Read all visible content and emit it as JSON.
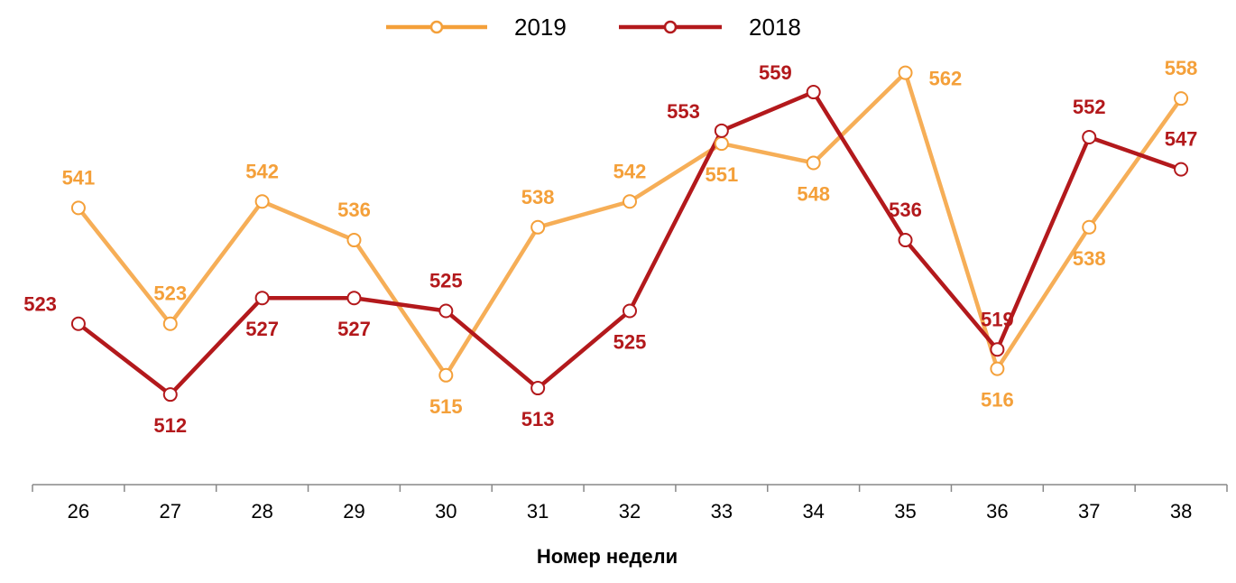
{
  "chart_data": {
    "type": "line",
    "title": "",
    "xlabel": "Номер недели",
    "ylabel": "",
    "x": [
      "26",
      "27",
      "28",
      "29",
      "30",
      "31",
      "32",
      "33",
      "34",
      "35",
      "36",
      "37",
      "38"
    ],
    "ylim": [
      498,
      567
    ],
    "grid": false,
    "legend_position": "top-center",
    "series": [
      {
        "name": "2019",
        "color": "#F4A03A",
        "marker": "circle-open",
        "values": [
          541,
          523,
          542,
          536,
          515,
          538,
          542,
          551,
          548,
          562,
          516,
          538,
          558
        ],
        "label_placement": [
          "above",
          "above",
          "above",
          "above",
          "below",
          "above",
          "above",
          "below",
          "below",
          "right",
          "below",
          "below",
          "above"
        ]
      },
      {
        "name": "2018",
        "color": "#B3191C",
        "marker": "circle-open",
        "values": [
          523,
          512,
          527,
          527,
          525,
          513,
          525,
          553,
          559,
          536,
          519,
          552,
          547
        ],
        "label_placement": [
          "left",
          "below",
          "below",
          "below",
          "above",
          "below",
          "below",
          "left",
          "left",
          "above",
          "above",
          "above",
          "above"
        ]
      }
    ]
  }
}
